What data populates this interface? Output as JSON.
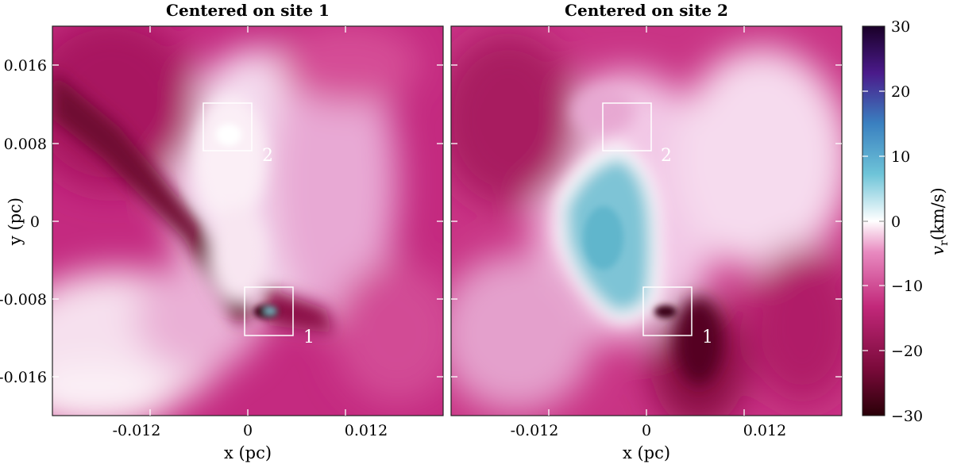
{
  "chart_data": [
    {
      "type": "heatmap",
      "title": "Centered on site 1",
      "xlabel": "x (pc)",
      "ylabel": "y (pc)",
      "xlim": [
        -0.02,
        0.02
      ],
      "ylim": [
        -0.02,
        0.02
      ],
      "x_ticks": [
        -0.012,
        0,
        0.012
      ],
      "x_tick_labels": [
        "-0.012",
        "0",
        "0.012"
      ],
      "y_ticks": [
        0.016,
        0.008,
        0,
        -0.008,
        -0.016
      ],
      "y_tick_labels": [
        "0.016",
        "0.008",
        "0",
        "-0.008",
        "-0.016"
      ],
      "regions": [
        {
          "label": "2",
          "x": [
            -0.0047,
            0.0003
          ],
          "y": [
            0.0075,
            0.0124
          ]
        },
        {
          "label": "1",
          "x": [
            -0.0003,
            0.0047
          ],
          "y": [
            -0.0119,
            -0.007
          ]
        }
      ]
    },
    {
      "type": "heatmap",
      "title": "Centered on site 2",
      "xlabel": "x (pc)",
      "ylabel": "",
      "xlim": [
        -0.02,
        0.02
      ],
      "ylim": [
        -0.02,
        0.02
      ],
      "x_ticks": [
        -0.012,
        0,
        0.012
      ],
      "x_tick_labels": [
        "-0.012",
        "0",
        "0.012"
      ],
      "regions": [
        {
          "label": "2",
          "x": [
            -0.0047,
            0.0003
          ],
          "y": [
            0.0075,
            0.0124
          ]
        },
        {
          "label": "1",
          "x": [
            -0.0003,
            0.0047
          ],
          "y": [
            -0.0119,
            -0.007
          ]
        }
      ]
    }
  ],
  "colorbar": {
    "label_main": "v",
    "label_sub": "r",
    "label_unit": "(km/s)",
    "range": [
      -30,
      30
    ],
    "ticks": [
      30,
      20,
      10,
      0,
      -10,
      -20,
      -30
    ],
    "tick_labels": [
      "30",
      "20",
      "10",
      "0",
      "−10",
      "−20",
      "−30"
    ],
    "colors": [
      "#2a0008",
      "#7a0a3a",
      "#c2287a",
      "#e88ac0",
      "#ffffff",
      "#6ec4d8",
      "#3a80c0",
      "#4a1a8a",
      "#1a0028"
    ]
  }
}
